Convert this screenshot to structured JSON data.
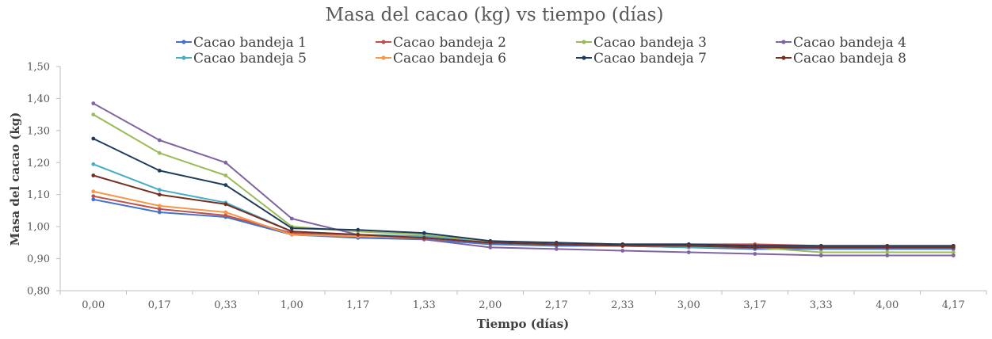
{
  "chart_data": {
    "type": "line",
    "title": "Masa del cacao (kg) vs tiempo (días)",
    "xlabel": "Tiempo (días)",
    "ylabel": "Masa del cacao (kg)",
    "ylim": [
      0.8,
      1.5
    ],
    "yticks": [
      "0,80",
      "0,90",
      "1,00",
      "1,10",
      "1,20",
      "1,30",
      "1,40",
      "1,50"
    ],
    "ytick_values": [
      0.8,
      0.9,
      1.0,
      1.1,
      1.2,
      1.3,
      1.4,
      1.5
    ],
    "categories": [
      "0,00",
      "0,17",
      "0,33",
      "1,00",
      "1,17",
      "1,33",
      "2,00",
      "2,17",
      "2,33",
      "3,00",
      "3,17",
      "3,33",
      "4,00",
      "4,17"
    ],
    "grid": false,
    "legend_position": "top",
    "series": [
      {
        "name": "Cacao bandeja 1",
        "color": "#4472C4",
        "values": [
          1.085,
          1.045,
          1.03,
          0.975,
          0.965,
          0.96,
          0.945,
          0.94,
          0.94,
          0.935,
          0.93,
          0.93,
          0.93,
          0.93
        ]
      },
      {
        "name": "Cacao bandeja 2",
        "color": "#C0504D",
        "values": [
          1.095,
          1.055,
          1.035,
          0.98,
          0.97,
          0.965,
          0.95,
          0.945,
          0.945,
          0.945,
          0.945,
          0.94,
          0.94,
          0.94
        ]
      },
      {
        "name": "Cacao bandeja 3",
        "color": "#9BBB59",
        "values": [
          1.35,
          1.23,
          1.16,
          1.0,
          0.985,
          0.975,
          0.95,
          0.945,
          0.94,
          0.94,
          0.935,
          0.92,
          0.92,
          0.92
        ]
      },
      {
        "name": "Cacao bandeja 4",
        "color": "#8064A2",
        "values": [
          1.385,
          1.27,
          1.2,
          1.025,
          0.975,
          0.96,
          0.935,
          0.93,
          0.925,
          0.92,
          0.915,
          0.91,
          0.91,
          0.91
        ]
      },
      {
        "name": "Cacao bandeja 5",
        "color": "#4BACC6",
        "values": [
          1.195,
          1.115,
          1.075,
          0.985,
          0.975,
          0.97,
          0.95,
          0.945,
          0.94,
          0.935,
          0.935,
          0.935,
          0.935,
          0.935
        ]
      },
      {
        "name": "Cacao bandeja 6",
        "color": "#F79646",
        "values": [
          1.11,
          1.065,
          1.045,
          0.975,
          0.97,
          0.965,
          0.95,
          0.945,
          0.94,
          0.94,
          0.935,
          0.935,
          0.935,
          0.935
        ]
      },
      {
        "name": "Cacao bandeja 7",
        "color": "#1F3B5C",
        "values": [
          1.275,
          1.175,
          1.13,
          0.995,
          0.99,
          0.98,
          0.955,
          0.95,
          0.945,
          0.945,
          0.94,
          0.94,
          0.94,
          0.94
        ]
      },
      {
        "name": "Cacao bandeja 8",
        "color": "#772E22",
        "values": [
          1.16,
          1.1,
          1.07,
          0.985,
          0.975,
          0.965,
          0.95,
          0.945,
          0.94,
          0.94,
          0.935,
          0.935,
          0.935,
          0.935
        ]
      }
    ]
  }
}
